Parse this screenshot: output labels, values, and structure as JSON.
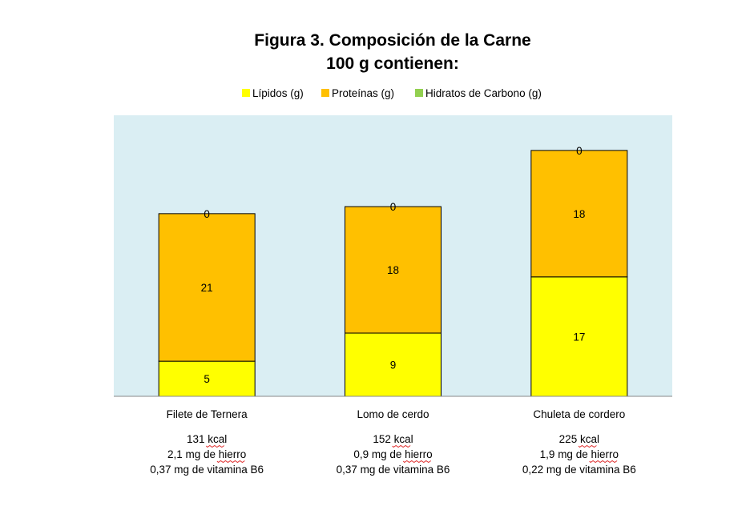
{
  "chart_data": {
    "type": "bar",
    "stacked": true,
    "title": "Figura 3. Composición de la Carne",
    "subtitle": "100 g contienen:",
    "categories": [
      "Filete de Ternera",
      "Lomo de cerdo",
      "Chuleta de cordero"
    ],
    "series": [
      {
        "name": "Lípidos (g)",
        "values": [
          5,
          9,
          17
        ],
        "color": "#FFFF00"
      },
      {
        "name": "Proteínas (g)",
        "values": [
          21,
          18,
          18
        ],
        "color": "#FFC000"
      },
      {
        "name": "Hidratos de Carbono (g)",
        "values": [
          0,
          0,
          0
        ],
        "color": "#92D050"
      }
    ],
    "data_labels": true,
    "ylim": [
      0,
      40
    ],
    "plot_background": "#DAEEF3",
    "bar_edge_color": "#000000",
    "legend_position": "top",
    "grid": false,
    "notes": [
      [
        "131 kcal",
        "2,1 mg de hierro",
        "0,37 mg de vitamina B6"
      ],
      [
        "152 kcal",
        "0,9 mg de hierro",
        "0,37 mg de vitamina B6"
      ],
      [
        "225 kcal",
        "1,9 mg de hierro",
        "0,22 mg de vitamina B6"
      ]
    ]
  }
}
